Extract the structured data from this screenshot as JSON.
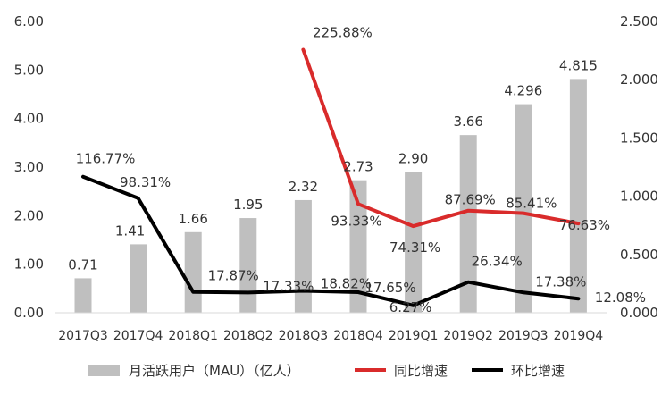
{
  "chart_data": {
    "type": "bar+line",
    "categories": [
      "2017Q3",
      "2017Q4",
      "2018Q1",
      "2018Q2",
      "2018Q3",
      "2018Q4",
      "2019Q1",
      "2019Q2",
      "2019Q3",
      "2019Q4"
    ],
    "series": [
      {
        "name": "月活跃用户（MAU）（亿人）",
        "type": "bar",
        "axis": "left",
        "color": "#bfbfbf",
        "values": [
          0.71,
          1.41,
          1.66,
          1.95,
          2.32,
          2.73,
          2.9,
          3.66,
          4.296,
          4.815
        ],
        "labels": [
          "0.71",
          "1.41",
          "1.66",
          "1.95",
          "2.32",
          "2.73",
          "2.90",
          "3.66",
          "4.296",
          "4.815"
        ]
      },
      {
        "name": "同比增速",
        "type": "line",
        "axis": "right",
        "color": "#d92b2b",
        "values": [
          null,
          null,
          null,
          null,
          2.2588,
          0.9333,
          0.7431,
          0.8769,
          0.8541,
          0.7663
        ],
        "labels": [
          null,
          null,
          null,
          null,
          "225.88%",
          "93.33%",
          "74.31%",
          "87.69%",
          "85.41%",
          "76.63%"
        ]
      },
      {
        "name": "环比增速",
        "type": "line",
        "axis": "right",
        "color": "#000000",
        "values": [
          1.1677,
          0.9831,
          0.1787,
          0.1733,
          0.1882,
          0.1765,
          0.0627,
          0.2634,
          0.1738,
          0.1208
        ],
        "labels": [
          "116.77%",
          "98.31%",
          "17.87%",
          "17.33%",
          "18.82%",
          "17.65%",
          "6.27%",
          "26.34%",
          "17.38%",
          "12.08%"
        ]
      }
    ],
    "left_axis": {
      "min": 0,
      "max": 6,
      "ticks": [
        "0.00",
        "1.00",
        "2.00",
        "3.00",
        "4.00",
        "5.00",
        "6.00"
      ]
    },
    "right_axis": {
      "min": 0,
      "max": 2.5,
      "ticks": [
        "0.000",
        "0.500",
        "1.000",
        "1.500",
        "2.000",
        "2.500"
      ]
    },
    "grid": false,
    "legend_position": "bottom"
  }
}
